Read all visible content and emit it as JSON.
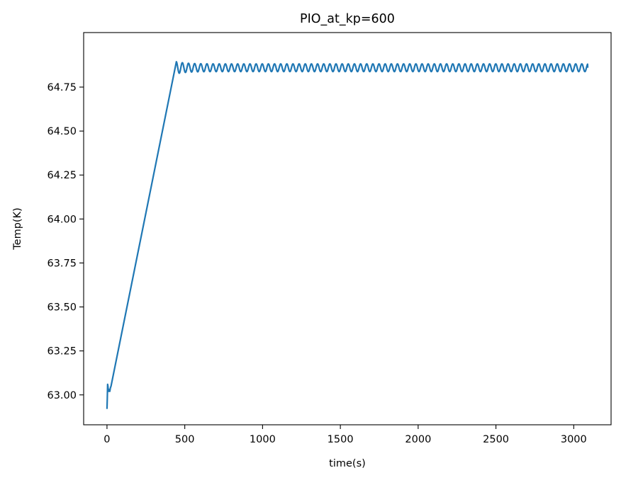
{
  "chart_data": {
    "type": "line",
    "title": "PIO_at_kp=600",
    "xlabel": "time(s)",
    "ylabel": "Temp(K)",
    "xlim": [
      -150,
      3240
    ],
    "ylim": [
      62.83,
      65.06
    ],
    "xticks": [
      0,
      500,
      1000,
      1500,
      2000,
      2500,
      3000
    ],
    "xtick_labels": [
      "0",
      "500",
      "1000",
      "1500",
      "2000",
      "2500",
      "3000"
    ],
    "yticks": [
      63.0,
      63.25,
      63.5,
      63.75,
      64.0,
      64.25,
      64.5,
      64.75
    ],
    "ytick_labels": [
      "63.00",
      "63.25",
      "63.50",
      "63.75",
      "64.00",
      "64.25",
      "64.50",
      "64.75"
    ],
    "grid": false,
    "legend": "none",
    "line_color": "#1f77b4",
    "series": [
      {
        "x": [
          0,
          2,
          4,
          6,
          8,
          10,
          14,
          18,
          22,
          26,
          445
        ],
        "y": [
          62.92,
          62.98,
          63.06,
          63.05,
          63.03,
          63.02,
          63.03,
          63.02,
          63.04,
          63.05,
          64.89
        ]
      }
    ],
    "oscillation": {
      "start_x": 445,
      "end_x": 3090,
      "center": 64.86,
      "amplitude": 0.022,
      "period_s": 39.5,
      "initial_amplitude": 0.035,
      "final_value": 64.86
    }
  }
}
